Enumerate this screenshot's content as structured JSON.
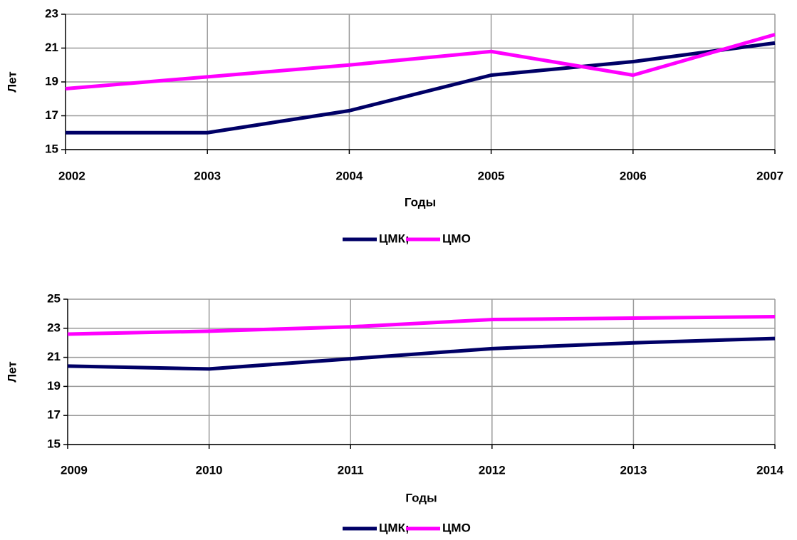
{
  "chart_data": [
    {
      "type": "line",
      "ylabel": "Лет",
      "xlabel": "Годы",
      "categories": [
        "2002",
        "2003",
        "2004",
        "2005",
        "2006",
        "2007"
      ],
      "series": [
        {
          "name": "ЦМК;",
          "color": "#000066",
          "values": [
            16.0,
            16.0,
            17.3,
            19.4,
            20.2,
            21.3
          ]
        },
        {
          "name": "ЦМО",
          "color": "#ff00ff",
          "values": [
            18.6,
            19.3,
            20.0,
            20.8,
            19.4,
            21.8
          ]
        }
      ],
      "ylim": [
        15,
        23
      ],
      "yticks": [
        15,
        17,
        19,
        21,
        23
      ],
      "grid": true,
      "legend": "bottom"
    },
    {
      "type": "line",
      "ylabel": "Лет",
      "xlabel": "Годы",
      "categories": [
        "2009",
        "2010",
        "2011",
        "2012",
        "2013",
        "2014"
      ],
      "series": [
        {
          "name": "ЦМК;",
          "color": "#000066",
          "values": [
            20.4,
            20.2,
            20.9,
            21.6,
            22.0,
            22.3
          ]
        },
        {
          "name": "ЦМО",
          "color": "#ff00ff",
          "values": [
            22.6,
            22.8,
            23.1,
            23.6,
            23.7,
            23.8
          ]
        }
      ],
      "ylim": [
        15,
        25
      ],
      "yticks": [
        15,
        17,
        19,
        21,
        23,
        25
      ],
      "grid": true,
      "legend": "bottom"
    }
  ]
}
